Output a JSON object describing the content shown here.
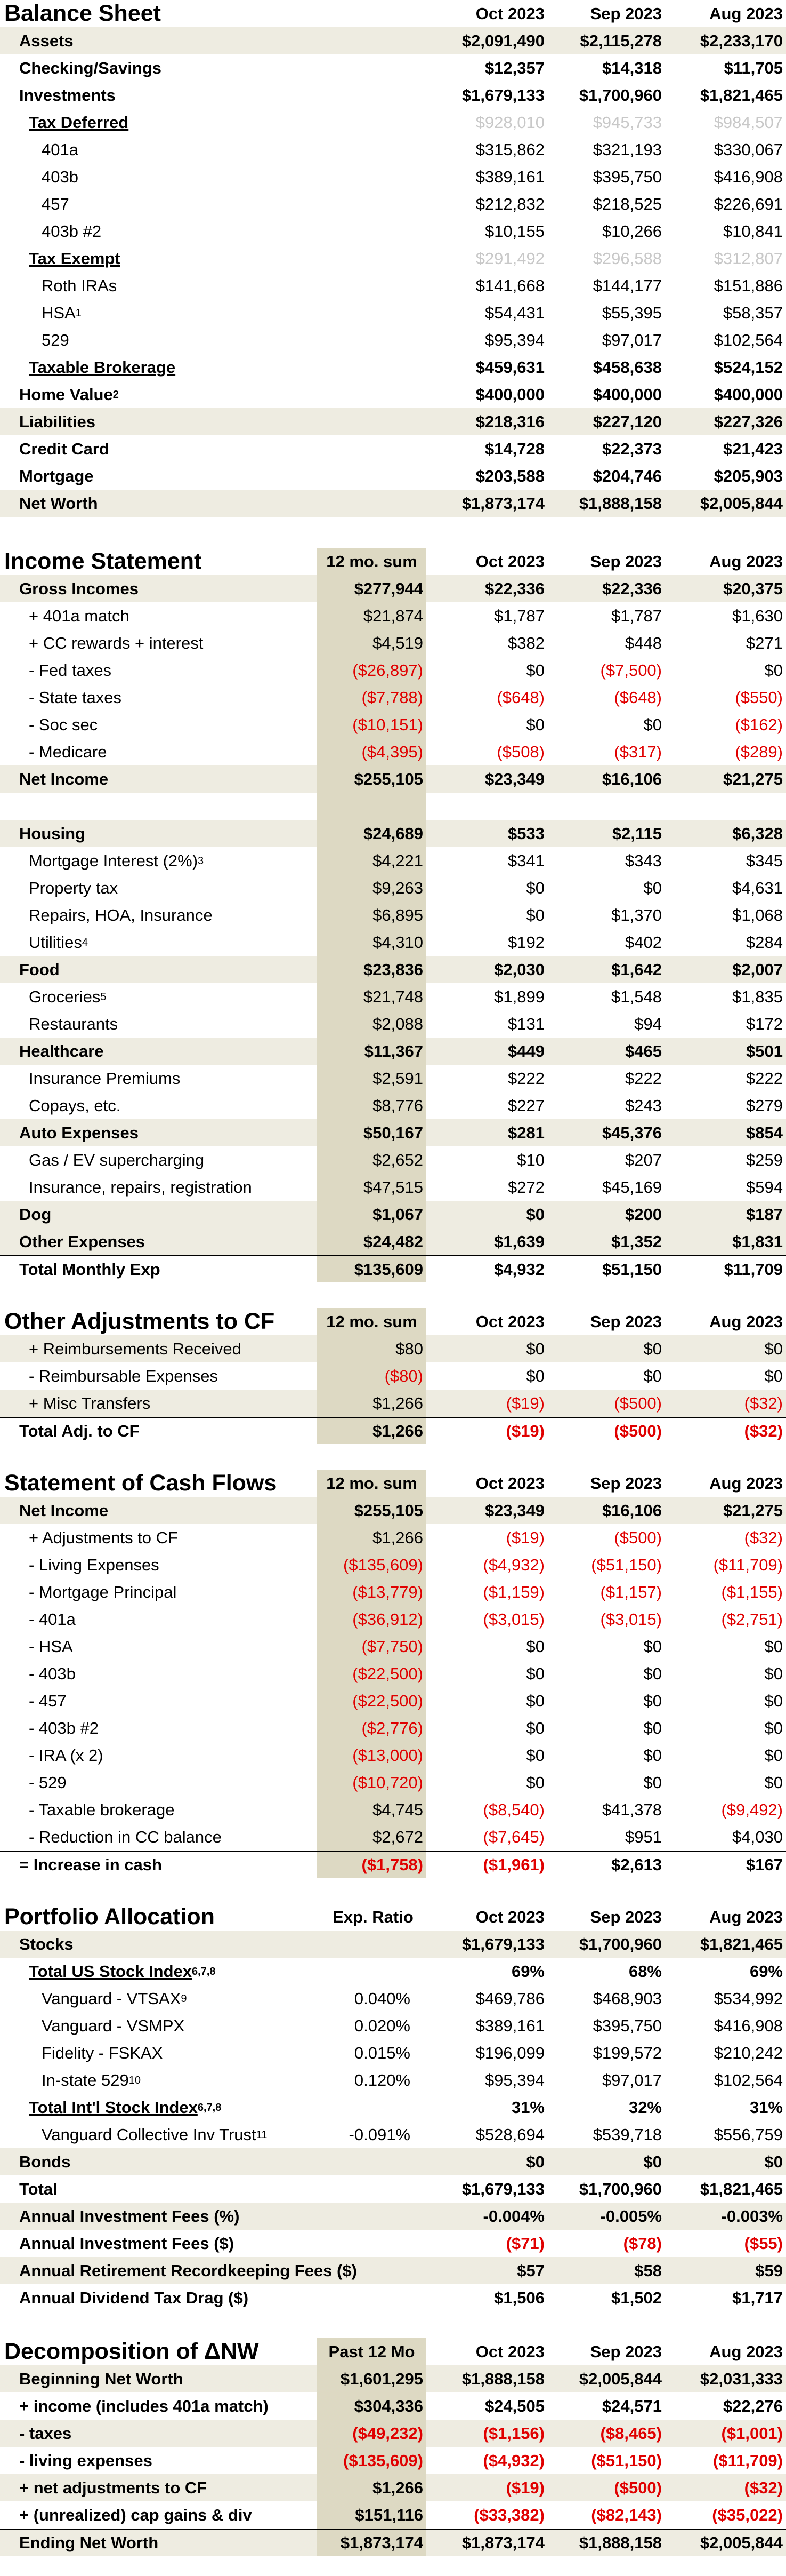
{
  "balance_sheet": {
    "title": "Balance Sheet",
    "months": [
      "Oct 2023",
      "Sep 2023",
      "Aug 2023"
    ],
    "rows": [
      {
        "kind": "b",
        "label": "Assets",
        "v": [
          "$2,091,490",
          "$2,115,278",
          "$2,233,170"
        ]
      },
      {
        "kind": "b",
        "nobg": true,
        "label": "Checking/Savings",
        "v": [
          "$12,357",
          "$14,318",
          "$11,705"
        ]
      },
      {
        "kind": "b",
        "nobg": true,
        "label": "Investments",
        "v": [
          "$1,679,133",
          "$1,700,960",
          "$1,821,465"
        ]
      },
      {
        "kind": "i1",
        "ul": true,
        "boldlabel": true,
        "label": "Tax Deferred",
        "v": [
          "$928,010",
          "$945,733",
          "$984,507"
        ],
        "grey": true
      },
      {
        "kind": "i2",
        "label": "401a",
        "v": [
          "$315,862",
          "$321,193",
          "$330,067"
        ]
      },
      {
        "kind": "i2",
        "label": "403b",
        "v": [
          "$389,161",
          "$395,750",
          "$416,908"
        ]
      },
      {
        "kind": "i2",
        "label": "457",
        "v": [
          "$212,832",
          "$218,525",
          "$226,691"
        ]
      },
      {
        "kind": "i2",
        "label": "403b #2",
        "v": [
          "$10,155",
          "$10,266",
          "$10,841"
        ]
      },
      {
        "kind": "i1",
        "ul": true,
        "boldlabel": true,
        "label": "Tax Exempt",
        "v": [
          "$291,492",
          "$296,588",
          "$312,807"
        ],
        "grey": true
      },
      {
        "kind": "i2",
        "label": "Roth IRAs",
        "v": [
          "$141,668",
          "$144,177",
          "$151,886"
        ]
      },
      {
        "kind": "i2",
        "label": "HSA",
        "sup": "1",
        "v": [
          "$54,431",
          "$55,395",
          "$58,357"
        ]
      },
      {
        "kind": "i2",
        "label": "529",
        "v": [
          "$95,394",
          "$97,017",
          "$102,564"
        ]
      },
      {
        "kind": "i1",
        "ul": true,
        "boldlabel": true,
        "bold": true,
        "label": "Taxable Brokerage",
        "v": [
          "$459,631",
          "$458,638",
          "$524,152"
        ]
      },
      {
        "kind": "b",
        "nobg": true,
        "label": "Home Value",
        "sup": "2",
        "v": [
          "$400,000",
          "$400,000",
          "$400,000"
        ]
      },
      {
        "kind": "b",
        "label": "Liabilities",
        "v": [
          "$218,316",
          "$227,120",
          "$227,326"
        ]
      },
      {
        "kind": "b",
        "nobg": true,
        "label": "Credit Card",
        "v": [
          "$14,728",
          "$22,373",
          "$21,423"
        ]
      },
      {
        "kind": "b",
        "nobg": true,
        "label": "Mortgage",
        "v": [
          "$203,588",
          "$204,746",
          "$205,903"
        ]
      },
      {
        "kind": "b",
        "label": "Net Worth",
        "v": [
          "$1,873,174",
          "$1,888,158",
          "$2,005,844"
        ]
      }
    ]
  },
  "income_statement": {
    "title": "Income Statement",
    "sum_header": "12 mo. sum",
    "months": [
      "Oct 2023",
      "Sep 2023",
      "Aug 2023"
    ],
    "rows": [
      {
        "kind": "b",
        "label": "Gross Incomes",
        "s": "$277,944",
        "v": [
          "$22,336",
          "$22,336",
          "$20,375"
        ]
      },
      {
        "kind": "i1",
        "label": "+ 401a match",
        "s": "$21,874",
        "v": [
          "$1,787",
          "$1,787",
          "$1,630"
        ]
      },
      {
        "kind": "i1",
        "label": "+ CC rewards + interest",
        "s": "$4,519",
        "v": [
          "$382",
          "$448",
          "$271"
        ]
      },
      {
        "kind": "i1",
        "label": "- Fed taxes",
        "s": "($26,897)",
        "v": [
          "$0",
          "($7,500)",
          "$0"
        ]
      },
      {
        "kind": "i1",
        "label": "- State taxes",
        "s": "($7,788)",
        "v": [
          "($648)",
          "($648)",
          "($550)"
        ]
      },
      {
        "kind": "i1",
        "label": "- Soc sec",
        "s": "($10,151)",
        "v": [
          "$0",
          "$0",
          "($162)"
        ]
      },
      {
        "kind": "i1",
        "label": "- Medicare",
        "s": "($4,395)",
        "v": [
          "($508)",
          "($317)",
          "($289)"
        ]
      },
      {
        "kind": "b",
        "label": "Net Income",
        "s": "$255,105",
        "v": [
          "$23,349",
          "$16,106",
          "$21,275"
        ]
      },
      {
        "kind": "gap"
      },
      {
        "kind": "b",
        "label": "Housing",
        "s": "$24,689",
        "v": [
          "$533",
          "$2,115",
          "$6,328"
        ]
      },
      {
        "kind": "i1",
        "label": "Mortgage Interest (2%)",
        "sup": "3",
        "s": "$4,221",
        "v": [
          "$341",
          "$343",
          "$345"
        ]
      },
      {
        "kind": "i1",
        "label": "Property tax",
        "s": "$9,263",
        "v": [
          "$0",
          "$0",
          "$4,631"
        ]
      },
      {
        "kind": "i1",
        "label": "Repairs, HOA, Insurance",
        "s": "$6,895",
        "v": [
          "$0",
          "$1,370",
          "$1,068"
        ]
      },
      {
        "kind": "i1",
        "label": "Utilities",
        "sup": "4",
        "s": "$4,310",
        "v": [
          "$192",
          "$402",
          "$284"
        ]
      },
      {
        "kind": "b",
        "label": "Food",
        "s": "$23,836",
        "v": [
          "$2,030",
          "$1,642",
          "$2,007"
        ]
      },
      {
        "kind": "i1",
        "label": "Groceries",
        "sup": "5",
        "s": "$21,748",
        "v": [
          "$1,899",
          "$1,548",
          "$1,835"
        ]
      },
      {
        "kind": "i1",
        "label": "Restaurants",
        "s": "$2,088",
        "v": [
          "$131",
          "$94",
          "$172"
        ]
      },
      {
        "kind": "b",
        "label": "Healthcare",
        "s": "$11,367",
        "v": [
          "$449",
          "$465",
          "$501"
        ]
      },
      {
        "kind": "i1",
        "label": "Insurance Premiums",
        "s": "$2,591",
        "v": [
          "$222",
          "$222",
          "$222"
        ]
      },
      {
        "kind": "i1",
        "label": "Copays, etc.",
        "s": "$8,776",
        "v": [
          "$227",
          "$243",
          "$279"
        ]
      },
      {
        "kind": "b",
        "label": "Auto Expenses",
        "s": "$50,167",
        "v": [
          "$281",
          "$45,376",
          "$854"
        ]
      },
      {
        "kind": "i1",
        "label": "Gas / EV supercharging",
        "s": "$2,652",
        "v": [
          "$10",
          "$207",
          "$259"
        ]
      },
      {
        "kind": "i1",
        "label": "Insurance, repairs, registration",
        "s": "$47,515",
        "v": [
          "$272",
          "$45,169",
          "$594"
        ]
      },
      {
        "kind": "b",
        "label": "Dog",
        "s": "$1,067",
        "v": [
          "$0",
          "$200",
          "$187"
        ]
      },
      {
        "kind": "b",
        "label": "Other Expenses",
        "s": "$24,482",
        "v": [
          "$1,639",
          "$1,352",
          "$1,831"
        ]
      },
      {
        "kind": "b",
        "nobg": true,
        "topline": true,
        "label": "Total Monthly Exp",
        "s": "$135,609",
        "v": [
          "$4,932",
          "$51,150",
          "$11,709"
        ]
      }
    ]
  },
  "adjustments": {
    "title": "Other Adjustments to CF",
    "sum_header": "12 mo. sum",
    "months": [
      "Oct 2023",
      "Sep 2023",
      "Aug 2023"
    ],
    "rows": [
      {
        "kind": "i1",
        "shade": true,
        "label": "+ Reimbursements Received",
        "s": "$80",
        "v": [
          "$0",
          "$0",
          "$0"
        ]
      },
      {
        "kind": "i1",
        "label": "- Reimbursable Expenses",
        "s": "($80)",
        "v": [
          "$0",
          "$0",
          "$0"
        ]
      },
      {
        "kind": "i1",
        "shade": true,
        "label": "+ Misc Transfers",
        "s": "$1,266",
        "v": [
          "($19)",
          "($500)",
          "($32)"
        ]
      },
      {
        "kind": "b",
        "nobg": true,
        "topline": true,
        "label": "Total Adj. to CF",
        "s": "$1,266",
        "v": [
          "($19)",
          "($500)",
          "($32)"
        ]
      }
    ]
  },
  "cash_flows": {
    "title": "Statement of Cash Flows",
    "sum_header": "12 mo. sum",
    "months": [
      "Oct 2023",
      "Sep 2023",
      "Aug 2023"
    ],
    "rows": [
      {
        "kind": "b",
        "label": "Net Income",
        "s": "$255,105",
        "v": [
          "$23,349",
          "$16,106",
          "$21,275"
        ]
      },
      {
        "kind": "i1",
        "label": "+ Adjustments to CF",
        "s": "$1,266",
        "v": [
          "($19)",
          "($500)",
          "($32)"
        ]
      },
      {
        "kind": "i1",
        "label": "- Living Expenses",
        "s": "($135,609)",
        "v": [
          "($4,932)",
          "($51,150)",
          "($11,709)"
        ]
      },
      {
        "kind": "i1",
        "label": "- Mortgage Principal",
        "s": "($13,779)",
        "v": [
          "($1,159)",
          "($1,157)",
          "($1,155)"
        ]
      },
      {
        "kind": "i1",
        "label": "- 401a",
        "s": "($36,912)",
        "v": [
          "($3,015)",
          "($3,015)",
          "($2,751)"
        ]
      },
      {
        "kind": "i1",
        "label": "- HSA",
        "s": "($7,750)",
        "v": [
          "$0",
          "$0",
          "$0"
        ]
      },
      {
        "kind": "i1",
        "label": "- 403b",
        "s": "($22,500)",
        "v": [
          "$0",
          "$0",
          "$0"
        ]
      },
      {
        "kind": "i1",
        "label": "- 457",
        "s": "($22,500)",
        "v": [
          "$0",
          "$0",
          "$0"
        ]
      },
      {
        "kind": "i1",
        "label": "- 403b #2",
        "s": "($2,776)",
        "v": [
          "$0",
          "$0",
          "$0"
        ]
      },
      {
        "kind": "i1",
        "label": "- IRA (x 2)",
        "s": "($13,000)",
        "v": [
          "$0",
          "$0",
          "$0"
        ]
      },
      {
        "kind": "i1",
        "label": "- 529",
        "s": "($10,720)",
        "v": [
          "$0",
          "$0",
          "$0"
        ]
      },
      {
        "kind": "i1",
        "label": "- Taxable brokerage",
        "s": "$4,745",
        "v": [
          "($8,540)",
          "$41,378",
          "($9,492)"
        ]
      },
      {
        "kind": "i1",
        "label": "- Reduction in CC balance",
        "s": "$2,672",
        "v": [
          "($7,645)",
          "$951",
          "$4,030"
        ]
      },
      {
        "kind": "b",
        "nobg": true,
        "topline": true,
        "label": "= Increase in cash",
        "s": "($1,758)",
        "v": [
          "($1,961)",
          "$2,613",
          "$167"
        ]
      }
    ]
  },
  "portfolio": {
    "title": "Portfolio Allocation",
    "ratio_header": "Exp. Ratio",
    "months": [
      "Oct 2023",
      "Sep 2023",
      "Aug 2023"
    ],
    "rows": [
      {
        "kind": "b",
        "label": "Stocks",
        "r": "",
        "v": [
          "$1,679,133",
          "$1,700,960",
          "$1,821,465"
        ]
      },
      {
        "kind": "i1",
        "ul": true,
        "bold": true,
        "label": "Total US Stock Index",
        "sup": "6,7,8",
        "r": "",
        "v": [
          "69%",
          "68%",
          "69%"
        ]
      },
      {
        "kind": "i2",
        "label": "Vanguard - VTSAX",
        "sup": "9",
        "r": "0.040%",
        "v": [
          "$469,786",
          "$468,903",
          "$534,992"
        ]
      },
      {
        "kind": "i2",
        "label": "Vanguard - VSMPX",
        "r": "0.020%",
        "v": [
          "$389,161",
          "$395,750",
          "$416,908"
        ]
      },
      {
        "kind": "i2",
        "label": "Fidelity - FSKAX",
        "r": "0.015%",
        "v": [
          "$196,099",
          "$199,572",
          "$210,242"
        ]
      },
      {
        "kind": "i2",
        "label": "In-state 529",
        "sup": "10",
        "r": "0.120%",
        "v": [
          "$95,394",
          "$97,017",
          "$102,564"
        ]
      },
      {
        "kind": "i1",
        "ul": true,
        "bold": true,
        "label": "Total Int'l Stock Index",
        "sup": "6,7,8",
        "r": "",
        "v": [
          "31%",
          "32%",
          "31%"
        ]
      },
      {
        "kind": "i2",
        "label": "Vanguard Collective Inv Trust",
        "sup": "11",
        "r": "-0.091%",
        "v": [
          "$528,694",
          "$539,718",
          "$556,759"
        ]
      },
      {
        "kind": "b",
        "label": "Bonds",
        "r": "",
        "v": [
          "$0",
          "$0",
          "$0"
        ]
      },
      {
        "kind": "b",
        "nobg": true,
        "label": "Total",
        "r": "",
        "v": [
          "$1,679,133",
          "$1,700,960",
          "$1,821,465"
        ]
      },
      {
        "kind": "b",
        "label": "Annual Investment Fees (%)",
        "r": "",
        "v": [
          "-0.004%",
          "-0.005%",
          "-0.003%"
        ]
      },
      {
        "kind": "b",
        "nobg": true,
        "label": "Annual Investment Fees ($)",
        "r": "",
        "v": [
          "($71)",
          "($78)",
          "($55)"
        ]
      },
      {
        "kind": "b",
        "label": "Annual Retirement Recordkeeping Fees ($)",
        "r": "",
        "v": [
          "$57",
          "$58",
          "$59"
        ]
      },
      {
        "kind": "b",
        "nobg": true,
        "label": "Annual Dividend Tax Drag ($)",
        "r": "",
        "v": [
          "$1,506",
          "$1,502",
          "$1,717"
        ]
      }
    ]
  },
  "decomposition": {
    "title": "Decomposition of ΔNW",
    "sum_header": "Past 12 Mo",
    "months": [
      "Oct 2023",
      "Sep 2023",
      "Aug 2023"
    ],
    "rows": [
      {
        "kind": "b",
        "label": "Beginning Net Worth",
        "s": "$1,601,295",
        "v": [
          "$1,888,158",
          "$2,005,844",
          "$2,031,333"
        ]
      },
      {
        "kind": "b",
        "nobg": true,
        "label": "+ income (includes 401a match)",
        "s": "$304,336",
        "v": [
          "$24,505",
          "$24,571",
          "$22,276"
        ]
      },
      {
        "kind": "b",
        "label": "- taxes",
        "s": "($49,232)",
        "v": [
          "($1,156)",
          "($8,465)",
          "($1,001)"
        ]
      },
      {
        "kind": "b",
        "nobg": true,
        "label": "- living expenses",
        "s": "($135,609)",
        "v": [
          "($4,932)",
          "($51,150)",
          "($11,709)"
        ]
      },
      {
        "kind": "b",
        "label": "+ net adjustments to CF",
        "s": "$1,266",
        "v": [
          "($19)",
          "($500)",
          "($32)"
        ]
      },
      {
        "kind": "b",
        "nobg": true,
        "label": "+ (unrealized) cap gains & div",
        "s": "$151,116",
        "v": [
          "($33,382)",
          "($82,143)",
          "($35,022)"
        ]
      },
      {
        "kind": "b",
        "topline": true,
        "label": "Ending Net Worth",
        "s": "$1,873,174",
        "v": [
          "$1,873,174",
          "$1,888,158",
          "$2,005,844"
        ]
      }
    ]
  }
}
